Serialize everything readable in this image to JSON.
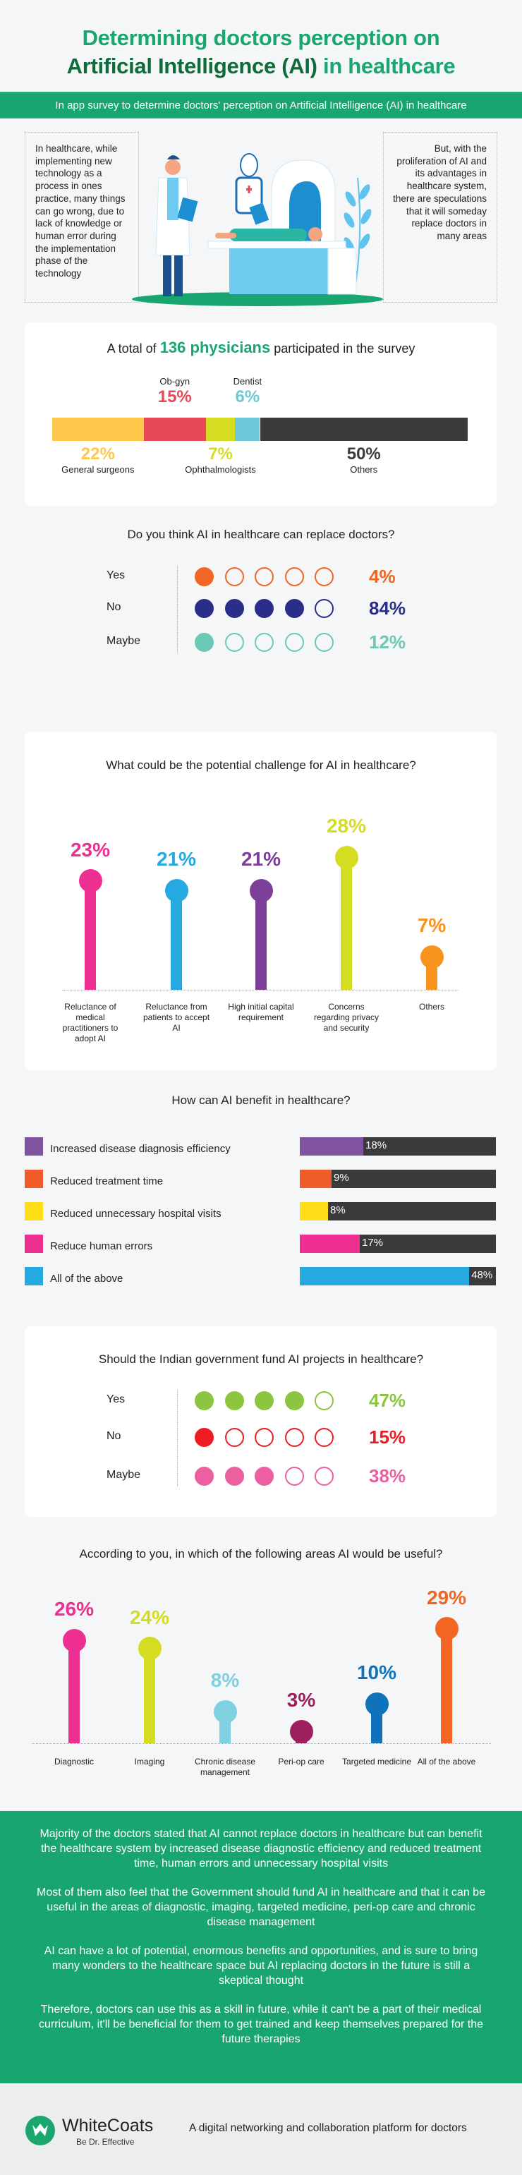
{
  "header": {
    "title_line1": "Determining doctors perception on",
    "title_line2_dark": "Artificial Intelligence (AI)",
    "title_line2_green": " in healthcare",
    "subtitle": "In app survey to determine doctors' perception on Artificial Intelligence (AI) in healthcare"
  },
  "intro": {
    "left": "In healthcare, while implementing new technology as a process in ones practice, many things can go wrong, due to lack of knowledge or human error during the implementation phase of the technology",
    "right": "But, with the proliferation of AI and its advantages in healthcare system, there are speculations that it will someday replace doctors in many areas"
  },
  "participants": {
    "prefix": "A total of ",
    "highlight": "136 physicians",
    "suffix": " participated in the survey",
    "segments": [
      {
        "label": "General surgeons",
        "pct": "22%",
        "value": 22,
        "color": "#fec84d",
        "pos": "below"
      },
      {
        "label": "Ob-gyn",
        "pct": "15%",
        "value": 15,
        "color": "#e84855",
        "pos": "above"
      },
      {
        "label": "Ophthalmologists",
        "pct": "7%",
        "value": 7,
        "color": "#d4dd22",
        "pos": "below"
      },
      {
        "label": "Dentist",
        "pct": "6%",
        "value": 6,
        "color": "#6bc9d8",
        "pos": "above"
      },
      {
        "label": "Others",
        "pct": "50%",
        "value": 50,
        "color": "#3b3b3d",
        "pos": "below"
      }
    ]
  },
  "replace": {
    "question": "Do you think AI in healthcare can replace doctors?",
    "rows": [
      {
        "label": "Yes",
        "pct": "4%",
        "filled": 1,
        "color": "#f26522"
      },
      {
        "label": "No",
        "pct": "84%",
        "filled": 4,
        "color": "#2b2d8a"
      },
      {
        "label": "Maybe",
        "pct": "12%",
        "filled": 1,
        "color": "#6cc9b5"
      }
    ]
  },
  "challenge": {
    "question": "What could be the potential challenge for AI in healthcare?",
    "items": [
      {
        "label": "Reluctance of medical practitioners to adopt AI",
        "pct": "23%",
        "value": 23,
        "color": "#ec2f91"
      },
      {
        "label": "Reluctance from patients to accept AI",
        "pct": "21%",
        "value": 21,
        "color": "#25a9e0"
      },
      {
        "label": "High initial capital requirement",
        "pct": "21%",
        "value": 21,
        "color": "#7b3f98"
      },
      {
        "label": "Concerns regarding privacy and security",
        "pct": "28%",
        "value": 28,
        "color": "#d4dd22"
      },
      {
        "label": "Others",
        "pct": "7%",
        "value": 7,
        "color": "#f7941d"
      }
    ]
  },
  "benefit": {
    "question": "How can AI benefit in healthcare?",
    "items": [
      {
        "label": "Increased disease diagnosis efficiency",
        "pct": "18%",
        "value": 18,
        "color": "#7f539f"
      },
      {
        "label": "Reduced treatment time",
        "pct": "9%",
        "value": 9,
        "color": "#f15a29"
      },
      {
        "label": "Reduced unnecessary hospital visits",
        "pct": "8%",
        "value": 8,
        "color": "#ffdd17"
      },
      {
        "label": "Reduce human errors",
        "pct": "17%",
        "value": 17,
        "color": "#ec2f91"
      },
      {
        "label": "All of the above",
        "pct": "48%",
        "value": 48,
        "color": "#25a9e0"
      }
    ]
  },
  "fund": {
    "question": "Should the Indian government fund AI projects in healthcare?",
    "rows": [
      {
        "label": "Yes",
        "pct": "47%",
        "filled": 4,
        "color": "#8cc63f"
      },
      {
        "label": "No",
        "pct": "15%",
        "filled": 1,
        "color": "#ed1c24"
      },
      {
        "label": "Maybe",
        "pct": "38%",
        "filled": 3,
        "color": "#ec5fa0"
      }
    ]
  },
  "areas": {
    "question": "According to you, in which of the following areas AI would be useful?",
    "items": [
      {
        "label": "Diagnostic",
        "pct": "26%",
        "value": 26,
        "color": "#ec2f91"
      },
      {
        "label": "Imaging",
        "pct": "24%",
        "value": 24,
        "color": "#d4dd22"
      },
      {
        "label": "Chronic disease management",
        "pct": "8%",
        "value": 8,
        "color": "#7fd0e1"
      },
      {
        "label": "Peri-op care",
        "pct": "3%",
        "value": 3,
        "color": "#9e1f5d"
      },
      {
        "label": "Targeted medicine",
        "pct": "10%",
        "value": 10,
        "color": "#0f72ba"
      },
      {
        "label": "All of the above",
        "pct": "29%",
        "value": 29,
        "color": "#f26522"
      }
    ]
  },
  "conclusion": [
    "Majority of the doctors stated that AI cannot replace doctors in healthcare but can benefit the healthcare system by increased disease diagnostic efficiency and reduced treatment time, human errors and unnecessary hospital visits",
    "Most of them also feel that the Government should fund AI in healthcare and that it can be useful in the areas of diagnostic, imaging, targeted medicine, peri-op care and chronic disease management",
    "AI can have a lot of potential, enormous benefits and opportunities, and is sure to bring many wonders to the healthcare space but AI replacing doctors in the future is still a skeptical thought",
    "Therefore, doctors can use this as a skill in future, while it can't be a part of their medical curriculum, it'll be beneficial for them to get trained and keep themselves prepared for the future therapies"
  ],
  "footer": {
    "brand": "WhiteCoats",
    "tagline": "Be Dr. Effective",
    "description": "A digital networking and collaboration platform for doctors"
  },
  "colors": {
    "brand_green": "#18a56f",
    "title_dark_green": "#0f6b3a",
    "background": "#f5f6f8"
  }
}
